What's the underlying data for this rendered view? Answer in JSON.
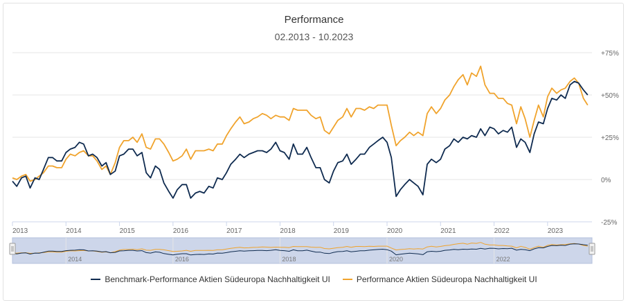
{
  "chart_data": {
    "type": "line",
    "title": "Performance",
    "subtitle": "02.2013 - 10.2023",
    "y_ticks": [
      "+75%",
      "+50%",
      "+25%",
      "0%",
      "-25%"
    ],
    "y_tick_values": [
      75,
      50,
      25,
      0,
      -25
    ],
    "ylim": [
      -25,
      75
    ],
    "x_ticks": [
      "2013",
      "2014",
      "2015",
      "2016",
      "2017",
      "2018",
      "2019",
      "2020",
      "2021",
      "2022",
      "2023"
    ],
    "x_tick_values": [
      2013.0,
      2014.0,
      2015.0,
      2016.0,
      2017.0,
      2018.0,
      2019.0,
      2020.0,
      2021.0,
      2022.0,
      2023.0
    ],
    "xlim": [
      2013.0,
      2023.83
    ],
    "navigator_ticks": [
      "2014",
      "2016",
      "2018",
      "2020",
      "2022"
    ],
    "navigator_tick_values": [
      2014.0,
      2016.0,
      2018.0,
      2020.0,
      2022.0
    ],
    "colors": {
      "benchmark": "#0e2a4f",
      "fund": "#f0a32c"
    },
    "series": [
      {
        "name": "Benchmark-Performance Aktien Südeuropa Nachhaltigkeit UI",
        "key": "benchmark",
        "points": [
          [
            2013.0,
            -1
          ],
          [
            2013.08,
            -4
          ],
          [
            2013.17,
            1
          ],
          [
            2013.25,
            2
          ],
          [
            2013.33,
            -5
          ],
          [
            2013.42,
            1
          ],
          [
            2013.5,
            0
          ],
          [
            2013.58,
            6
          ],
          [
            2013.67,
            13
          ],
          [
            2013.75,
            13
          ],
          [
            2013.83,
            11
          ],
          [
            2013.92,
            11
          ],
          [
            2014.0,
            16
          ],
          [
            2014.08,
            18
          ],
          [
            2014.17,
            19
          ],
          [
            2014.25,
            22
          ],
          [
            2014.33,
            21
          ],
          [
            2014.42,
            14
          ],
          [
            2014.5,
            15
          ],
          [
            2014.58,
            13
          ],
          [
            2014.67,
            8
          ],
          [
            2014.75,
            10
          ],
          [
            2014.83,
            3
          ],
          [
            2014.92,
            5
          ],
          [
            2015.0,
            14
          ],
          [
            2015.08,
            15
          ],
          [
            2015.17,
            18
          ],
          [
            2015.25,
            18
          ],
          [
            2015.33,
            14
          ],
          [
            2015.42,
            16
          ],
          [
            2015.5,
            4
          ],
          [
            2015.58,
            1
          ],
          [
            2015.67,
            8
          ],
          [
            2015.75,
            6
          ],
          [
            2015.83,
            -2
          ],
          [
            2015.92,
            -7
          ],
          [
            2016.0,
            -11
          ],
          [
            2016.08,
            -6
          ],
          [
            2016.17,
            -3
          ],
          [
            2016.25,
            -3
          ],
          [
            2016.33,
            -11
          ],
          [
            2016.42,
            -8
          ],
          [
            2016.5,
            -7
          ],
          [
            2016.58,
            -8
          ],
          [
            2016.67,
            -4
          ],
          [
            2016.75,
            -5
          ],
          [
            2016.83,
            1
          ],
          [
            2016.92,
            0
          ],
          [
            2017.0,
            4
          ],
          [
            2017.08,
            9
          ],
          [
            2017.17,
            12
          ],
          [
            2017.25,
            15
          ],
          [
            2017.33,
            13
          ],
          [
            2017.42,
            15
          ],
          [
            2017.5,
            16
          ],
          [
            2017.58,
            17
          ],
          [
            2017.67,
            17
          ],
          [
            2017.75,
            16
          ],
          [
            2017.83,
            18
          ],
          [
            2017.92,
            22
          ],
          [
            2018.0,
            17
          ],
          [
            2018.08,
            16
          ],
          [
            2018.17,
            12
          ],
          [
            2018.25,
            21
          ],
          [
            2018.33,
            15
          ],
          [
            2018.42,
            15
          ],
          [
            2018.5,
            19
          ],
          [
            2018.58,
            13
          ],
          [
            2018.67,
            7
          ],
          [
            2018.75,
            7
          ],
          [
            2018.83,
            0
          ],
          [
            2018.92,
            -2
          ],
          [
            2019.0,
            5
          ],
          [
            2019.08,
            10
          ],
          [
            2019.17,
            11
          ],
          [
            2019.25,
            15
          ],
          [
            2019.33,
            9
          ],
          [
            2019.42,
            12
          ],
          [
            2019.5,
            15
          ],
          [
            2019.58,
            15
          ],
          [
            2019.67,
            19
          ],
          [
            2019.75,
            21
          ],
          [
            2019.83,
            23
          ],
          [
            2019.92,
            25
          ],
          [
            2020.0,
            22
          ],
          [
            2020.08,
            13
          ],
          [
            2020.17,
            -10
          ],
          [
            2020.25,
            -6
          ],
          [
            2020.33,
            -3
          ],
          [
            2020.42,
            0
          ],
          [
            2020.5,
            -2
          ],
          [
            2020.58,
            -4
          ],
          [
            2020.67,
            -9
          ],
          [
            2020.75,
            9
          ],
          [
            2020.83,
            12
          ],
          [
            2020.92,
            10
          ],
          [
            2021.0,
            12
          ],
          [
            2021.08,
            18
          ],
          [
            2021.17,
            20
          ],
          [
            2021.25,
            24
          ],
          [
            2021.33,
            22
          ],
          [
            2021.42,
            25
          ],
          [
            2021.5,
            24
          ],
          [
            2021.58,
            26
          ],
          [
            2021.67,
            25
          ],
          [
            2021.75,
            30
          ],
          [
            2021.83,
            26
          ],
          [
            2021.92,
            31
          ],
          [
            2022.0,
            30
          ],
          [
            2022.08,
            27
          ],
          [
            2022.17,
            29
          ],
          [
            2022.25,
            28
          ],
          [
            2022.33,
            31
          ],
          [
            2022.42,
            19
          ],
          [
            2022.5,
            24
          ],
          [
            2022.58,
            22
          ],
          [
            2022.67,
            16
          ],
          [
            2022.75,
            27
          ],
          [
            2022.83,
            34
          ],
          [
            2022.92,
            33
          ],
          [
            2023.0,
            42
          ],
          [
            2023.08,
            48
          ],
          [
            2023.17,
            47
          ],
          [
            2023.25,
            50
          ],
          [
            2023.33,
            48
          ],
          [
            2023.42,
            56
          ],
          [
            2023.5,
            58
          ],
          [
            2023.58,
            57
          ],
          [
            2023.67,
            53
          ],
          [
            2023.75,
            50
          ]
        ]
      },
      {
        "name": "Performance Aktien Südeuropa Nachhaltigkeit UI",
        "key": "fund",
        "points": [
          [
            2013.0,
            1
          ],
          [
            2013.08,
            0
          ],
          [
            2013.17,
            2
          ],
          [
            2013.25,
            3
          ],
          [
            2013.33,
            -1
          ],
          [
            2013.42,
            0
          ],
          [
            2013.5,
            2
          ],
          [
            2013.58,
            4
          ],
          [
            2013.67,
            8
          ],
          [
            2013.75,
            8
          ],
          [
            2013.83,
            7
          ],
          [
            2013.92,
            7
          ],
          [
            2014.0,
            12
          ],
          [
            2014.08,
            15
          ],
          [
            2014.17,
            14
          ],
          [
            2014.25,
            16
          ],
          [
            2014.33,
            17
          ],
          [
            2014.42,
            14
          ],
          [
            2014.5,
            14
          ],
          [
            2014.58,
            11
          ],
          [
            2014.67,
            6
          ],
          [
            2014.75,
            8
          ],
          [
            2014.83,
            3
          ],
          [
            2014.92,
            10
          ],
          [
            2015.0,
            19
          ],
          [
            2015.08,
            23
          ],
          [
            2015.17,
            23
          ],
          [
            2015.25,
            25
          ],
          [
            2015.33,
            22
          ],
          [
            2015.42,
            27
          ],
          [
            2015.5,
            19
          ],
          [
            2015.58,
            18
          ],
          [
            2015.67,
            24
          ],
          [
            2015.75,
            24
          ],
          [
            2015.83,
            21
          ],
          [
            2015.92,
            16
          ],
          [
            2016.0,
            11
          ],
          [
            2016.08,
            12
          ],
          [
            2016.17,
            14
          ],
          [
            2016.25,
            18
          ],
          [
            2016.33,
            12
          ],
          [
            2016.42,
            17
          ],
          [
            2016.5,
            17
          ],
          [
            2016.58,
            17
          ],
          [
            2016.67,
            18
          ],
          [
            2016.75,
            17
          ],
          [
            2016.83,
            21
          ],
          [
            2016.92,
            21
          ],
          [
            2017.0,
            26
          ],
          [
            2017.08,
            30
          ],
          [
            2017.17,
            34
          ],
          [
            2017.25,
            37
          ],
          [
            2017.33,
            33
          ],
          [
            2017.42,
            34
          ],
          [
            2017.5,
            36
          ],
          [
            2017.58,
            37
          ],
          [
            2017.67,
            39
          ],
          [
            2017.75,
            38
          ],
          [
            2017.83,
            36
          ],
          [
            2017.92,
            38
          ],
          [
            2018.0,
            37
          ],
          [
            2018.08,
            37
          ],
          [
            2018.17,
            35
          ],
          [
            2018.25,
            42
          ],
          [
            2018.33,
            41
          ],
          [
            2018.42,
            41
          ],
          [
            2018.5,
            41
          ],
          [
            2018.58,
            38
          ],
          [
            2018.67,
            36
          ],
          [
            2018.75,
            37
          ],
          [
            2018.83,
            29
          ],
          [
            2018.92,
            27
          ],
          [
            2019.0,
            31
          ],
          [
            2019.08,
            35
          ],
          [
            2019.17,
            37
          ],
          [
            2019.25,
            42
          ],
          [
            2019.33,
            37
          ],
          [
            2019.42,
            42
          ],
          [
            2019.5,
            42
          ],
          [
            2019.58,
            41
          ],
          [
            2019.67,
            43
          ],
          [
            2019.75,
            42
          ],
          [
            2019.83,
            44
          ],
          [
            2019.92,
            44
          ],
          [
            2020.0,
            44
          ],
          [
            2020.08,
            32
          ],
          [
            2020.17,
            20
          ],
          [
            2020.25,
            23
          ],
          [
            2020.33,
            25
          ],
          [
            2020.42,
            28
          ],
          [
            2020.5,
            26
          ],
          [
            2020.58,
            28
          ],
          [
            2020.67,
            26
          ],
          [
            2020.75,
            39
          ],
          [
            2020.83,
            43
          ],
          [
            2020.92,
            39
          ],
          [
            2021.0,
            42
          ],
          [
            2021.08,
            47
          ],
          [
            2021.17,
            50
          ],
          [
            2021.25,
            55
          ],
          [
            2021.33,
            59
          ],
          [
            2021.42,
            62
          ],
          [
            2021.5,
            56
          ],
          [
            2021.58,
            63
          ],
          [
            2021.67,
            61
          ],
          [
            2021.75,
            67
          ],
          [
            2021.83,
            56
          ],
          [
            2021.92,
            51
          ],
          [
            2022.0,
            51
          ],
          [
            2022.08,
            48
          ],
          [
            2022.17,
            48
          ],
          [
            2022.25,
            45
          ],
          [
            2022.33,
            44
          ],
          [
            2022.42,
            33
          ],
          [
            2022.5,
            43
          ],
          [
            2022.58,
            36
          ],
          [
            2022.67,
            25
          ],
          [
            2022.75,
            35
          ],
          [
            2022.83,
            44
          ],
          [
            2022.92,
            37
          ],
          [
            2023.0,
            49
          ],
          [
            2023.08,
            54
          ],
          [
            2023.17,
            51
          ],
          [
            2023.25,
            53
          ],
          [
            2023.33,
            54
          ],
          [
            2023.42,
            58
          ],
          [
            2023.5,
            60
          ],
          [
            2023.58,
            57
          ],
          [
            2023.67,
            48
          ],
          [
            2023.75,
            44
          ]
        ]
      }
    ],
    "grid": "horizontal",
    "legend_position": "bottom"
  }
}
